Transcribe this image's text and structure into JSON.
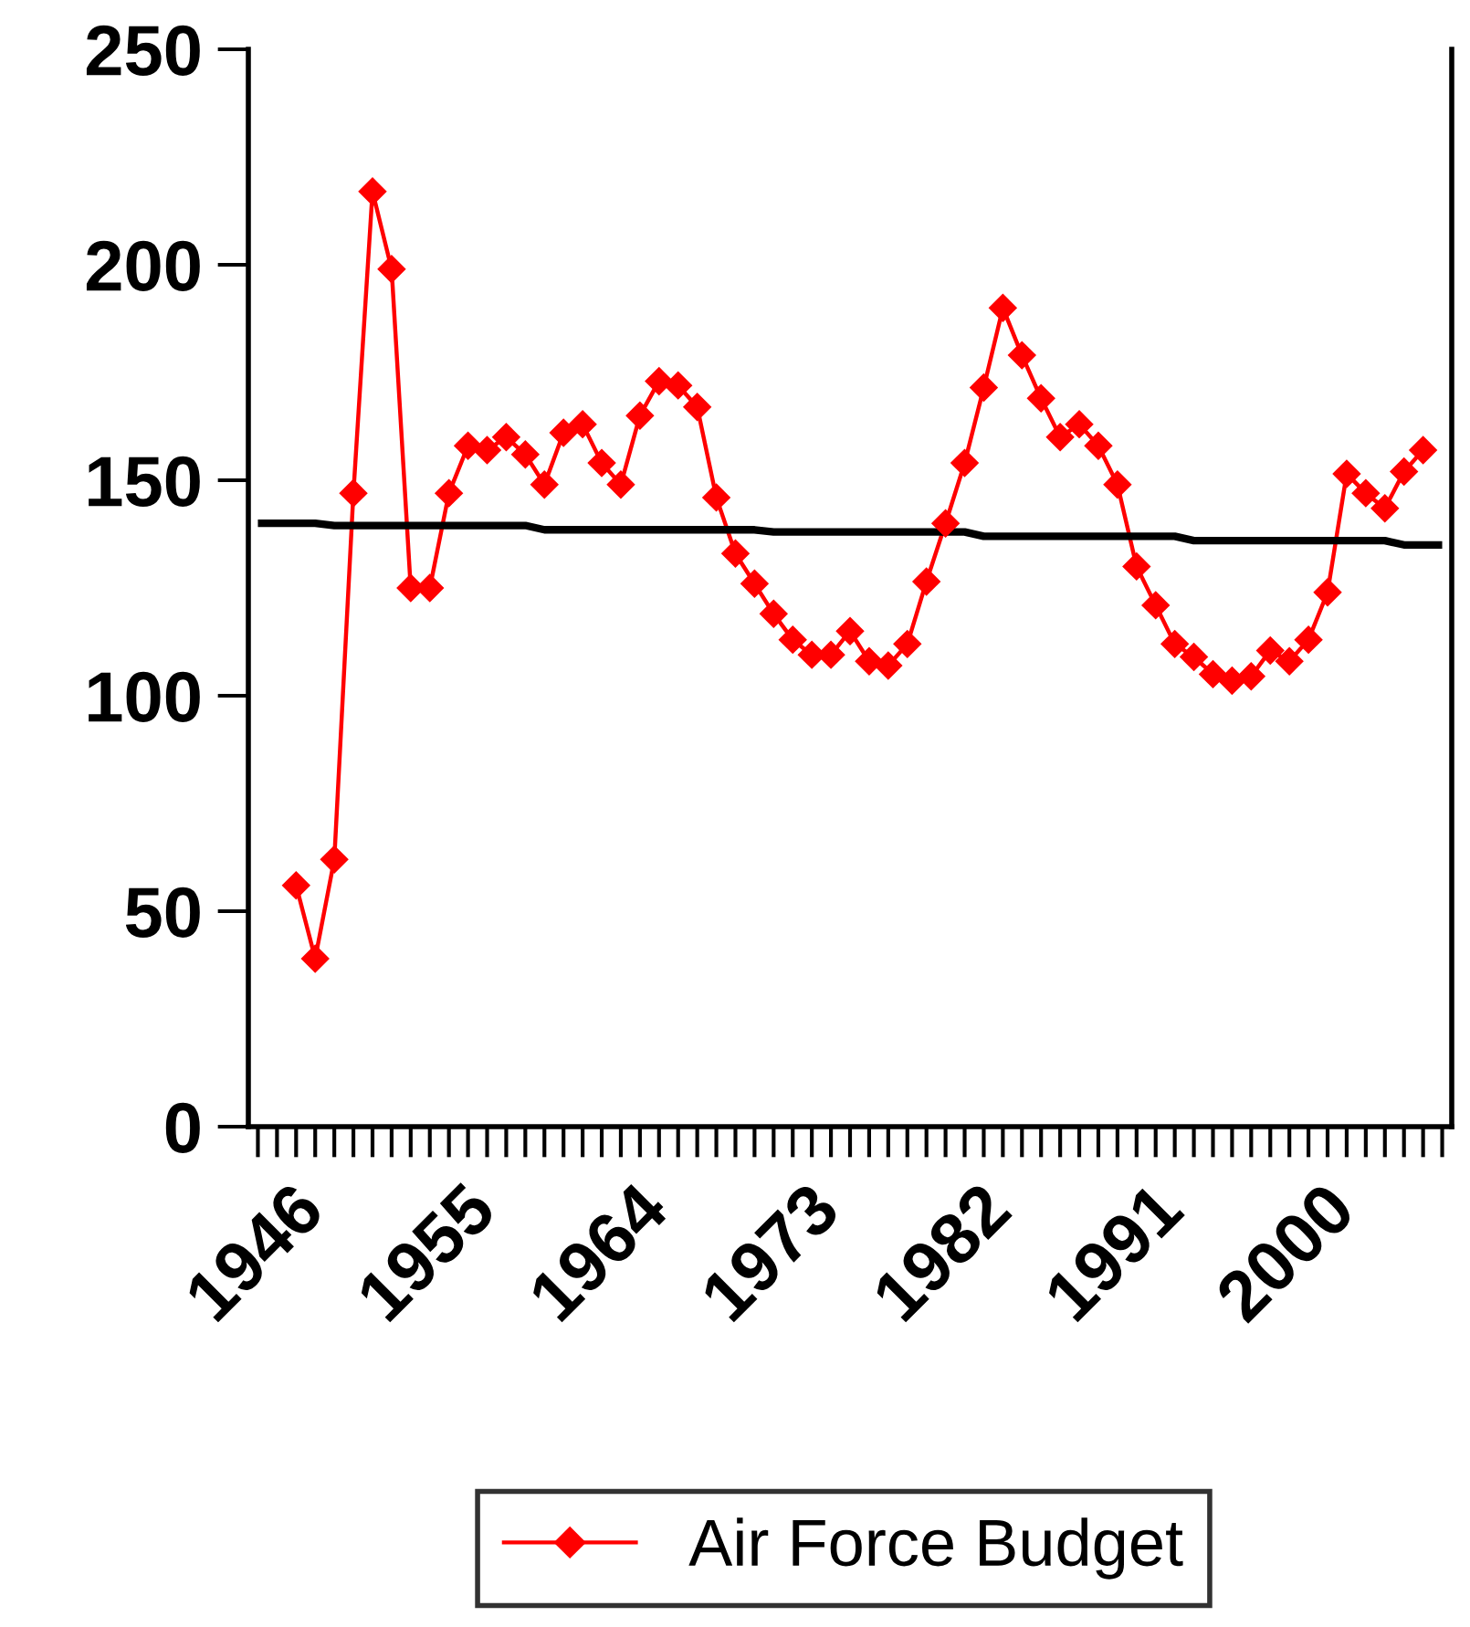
{
  "chart_data": {
    "type": "line",
    "categories": [
      "1946",
      null,
      null,
      null,
      null,
      null,
      null,
      null,
      null,
      "1955",
      null,
      null,
      null,
      null,
      null,
      null,
      null,
      null,
      "1964",
      null,
      null,
      null,
      null,
      null,
      null,
      null,
      null,
      "1973",
      null,
      null,
      null,
      null,
      null,
      null,
      null,
      null,
      "1982",
      null,
      null,
      null,
      null,
      null,
      null,
      null,
      null,
      "1991",
      null,
      null,
      null,
      null,
      null,
      null,
      null,
      null,
      "2000",
      null,
      null,
      null,
      null,
      null,
      null,
      null,
      null
    ],
    "series": [
      {
        "name": "Air Force Budget",
        "color": "#ff0000",
        "marker": "diamond",
        "values": [
          null,
          null,
          56,
          39,
          62,
          147,
          217,
          199,
          125,
          125,
          147,
          158,
          157,
          160,
          156,
          149,
          161,
          163,
          154,
          149,
          165,
          173,
          172,
          167,
          146,
          133,
          126,
          119,
          113,
          109.5,
          109.5,
          115,
          108,
          107,
          112,
          126.5,
          140,
          154,
          171.5,
          190,
          179,
          169,
          160,
          163,
          158,
          149,
          130,
          121,
          112,
          109,
          105,
          103.5,
          104.5,
          110.5,
          108,
          113,
          124,
          151.5,
          147,
          143.5,
          152,
          157,
          null
        ]
      },
      {
        "color": "#000000",
        "marker": "none",
        "values": [
          140,
          140,
          140,
          140,
          139.5,
          139.5,
          139.5,
          139.5,
          139.5,
          139.5,
          139.5,
          139.5,
          139.5,
          139.5,
          139.5,
          138.5,
          138.5,
          138.5,
          138.5,
          138.5,
          138.5,
          138.5,
          138.5,
          138.5,
          138.5,
          138.5,
          138.5,
          138,
          138,
          138,
          138,
          138,
          138,
          138,
          138,
          138,
          138,
          138,
          137,
          137,
          137,
          137,
          137,
          137,
          137,
          137,
          137,
          137,
          137,
          136,
          136,
          136,
          136,
          136,
          136,
          136,
          136,
          136,
          136,
          136,
          135,
          135,
          135
        ]
      }
    ],
    "ylim": [
      0,
      250
    ],
    "yticks": [
      0,
      50,
      100,
      150,
      200,
      250
    ],
    "grid": false,
    "legend": "bottom",
    "line_style": "solid"
  }
}
